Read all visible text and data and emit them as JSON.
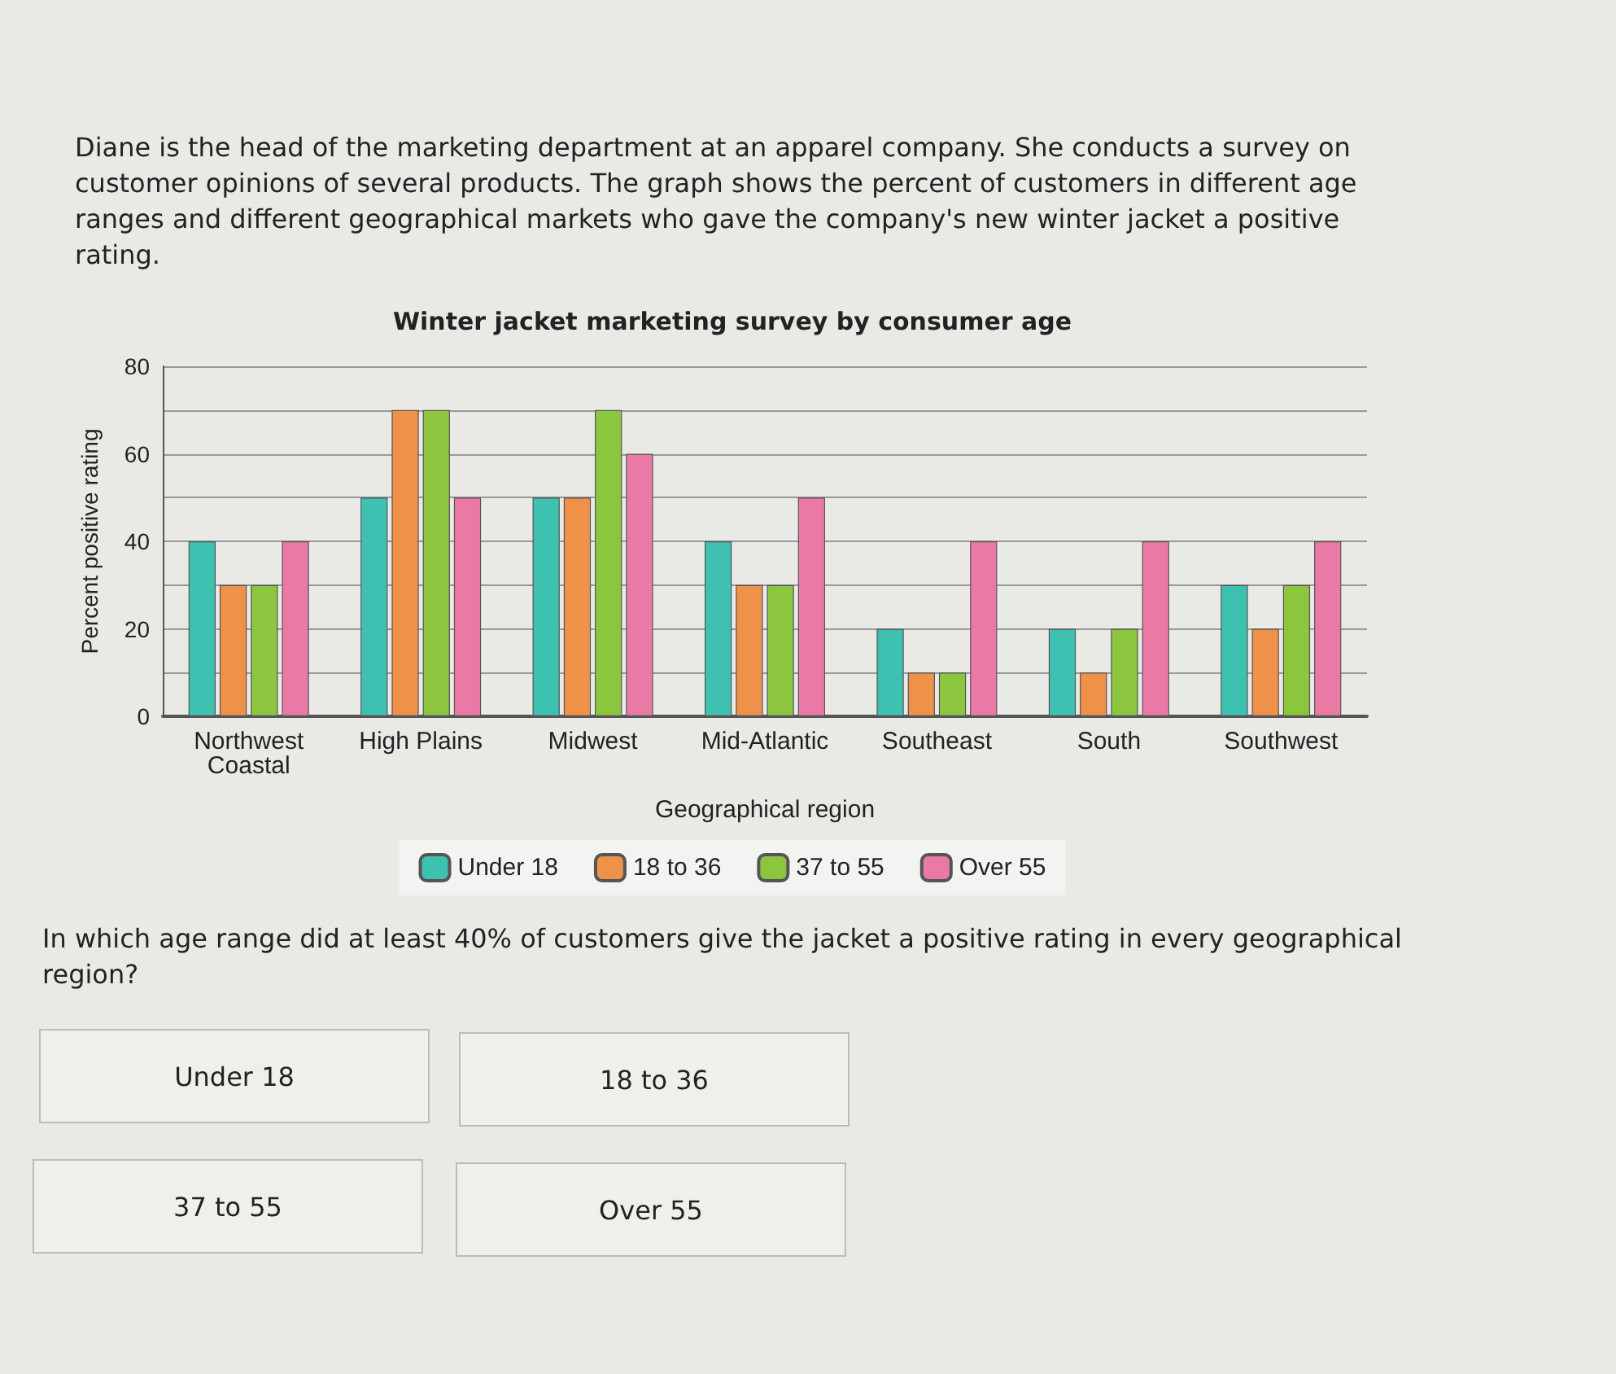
{
  "chart_data": {
    "type": "bar",
    "title": "Winter jacket marketing survey by consumer age",
    "xlabel": "Geographical region",
    "ylabel": "Percent positive rating",
    "categories": [
      "Northwest\nCoastal",
      "High Plains",
      "Midwest",
      "Mid-Atlantic",
      "Southeast",
      "South",
      "Southwest"
    ],
    "series": [
      {
        "name": "Under 18",
        "color": "#3ec1b0",
        "values": [
          40,
          50,
          50,
          40,
          20,
          20,
          30
        ]
      },
      {
        "name": "18 to 36",
        "color": "#f0914a",
        "values": [
          30,
          70,
          50,
          30,
          10,
          10,
          20
        ]
      },
      {
        "name": "37 to 55",
        "color": "#8cc63f",
        "values": [
          30,
          70,
          70,
          30,
          10,
          20,
          30
        ]
      },
      {
        "name": "Over 55",
        "color": "#ea7aa5",
        "values": [
          40,
          50,
          60,
          50,
          40,
          40,
          40
        ]
      }
    ],
    "ylim": [
      0,
      80
    ],
    "yticks": [
      0,
      {
        "value": 10,
        "label": null
      },
      20,
      {
        "value": 30,
        "label": null
      },
      40,
      {
        "value": 50,
        "label": null
      },
      60,
      {
        "value": 70,
        "label": null
      },
      80
    ],
    "grid": true,
    "legend": "bottom",
    "annotations": [
      "Diane is the head of the marketing department at an apparel company. She conducts a survey on customer opinions of several products. The graph shows the percent of customers in different age ranges and different geographical markets who gave the company's new winter jacket a positive rating.",
      "In which age range did at least 40% of customers give the jacket a positive rating in every geographical region?",
      "Under 18",
      "18 to 36",
      "37 to 55",
      "Over 55"
    ]
  }
}
